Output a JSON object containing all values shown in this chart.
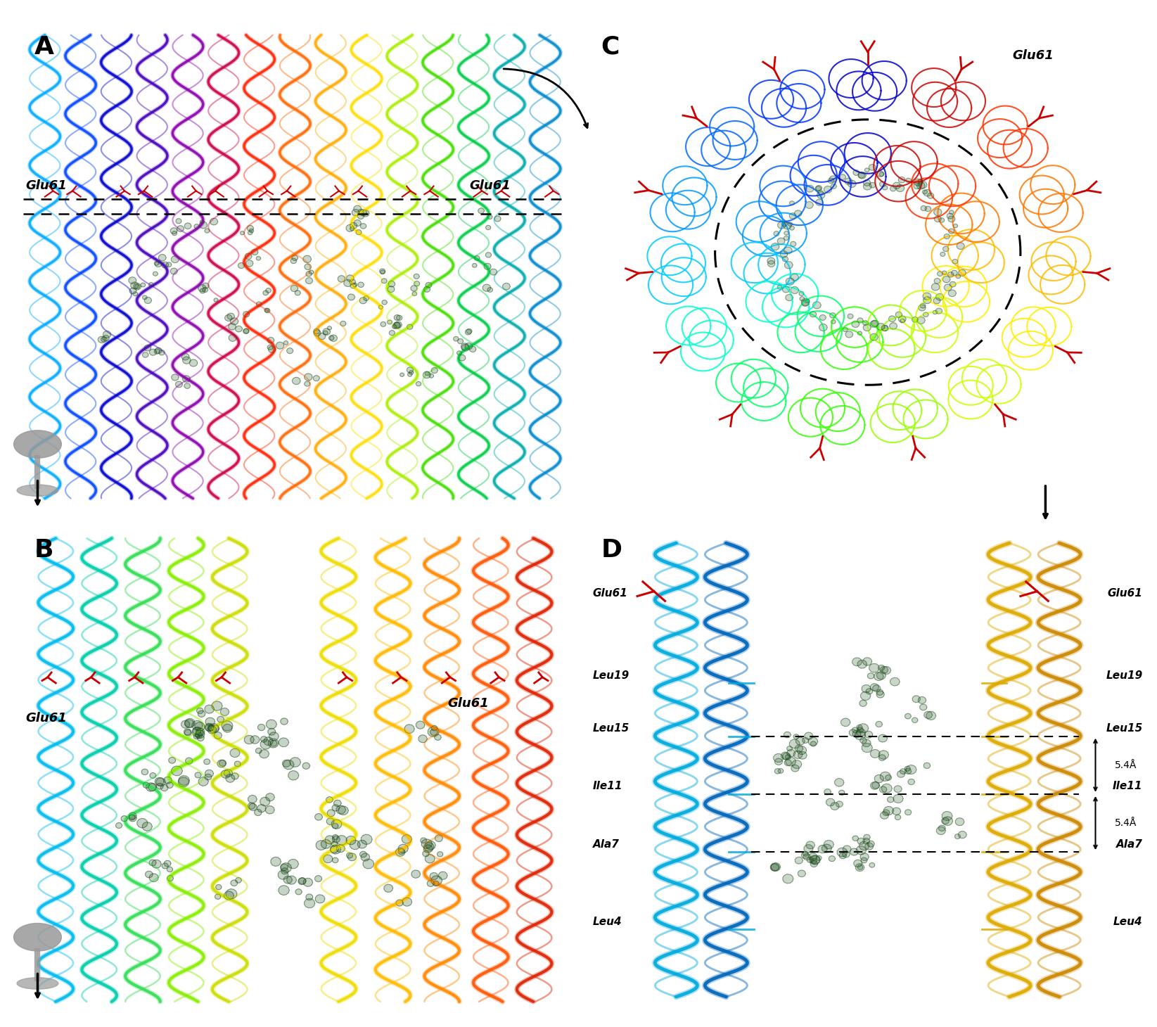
{
  "panel_labels": [
    "A",
    "B",
    "C",
    "D"
  ],
  "panel_label_fontsize": 26,
  "panel_label_weight": "bold",
  "background_color": "#ffffff",
  "figure_size": [
    16.45,
    14.6
  ],
  "dpi": 100,
  "glu61_label": "Glu61",
  "panel_D_measurement": "5.4Å",
  "rainbow_colors_15": [
    "#0000cc",
    "#0033ff",
    "#0066ff",
    "#0099ff",
    "#00ccff",
    "#00ffcc",
    "#00ff66",
    "#33ff00",
    "#99ff00",
    "#ccff00",
    "#ffee00",
    "#ffbb00",
    "#ff7700",
    "#ff3300",
    "#cc0000"
  ],
  "rainbow_colors_A": [
    "#00aaff",
    "#0044ff",
    "#0000cc",
    "#4400bb",
    "#8800aa",
    "#cc0044",
    "#ff2200",
    "#ff6600",
    "#ffaa00",
    "#ffdd00",
    "#aaee00",
    "#44dd00",
    "#00cc44",
    "#00aaaa",
    "#0088cc"
  ],
  "colors_B_cyan_green_yellow_orange": [
    "#00ccff",
    "#00ffaa",
    "#44ff44",
    "#aaff00",
    "#eeff00",
    "#ffee00",
    "#ffcc00",
    "#ff9900",
    "#ff6600",
    "#ff3300"
  ],
  "red_color": "#cc0000",
  "dark_green_mesh": "#1a4a1a",
  "gray_color": "#999999",
  "cyan_helix": "#00aadd",
  "yellow_helix": "#ddaa00"
}
